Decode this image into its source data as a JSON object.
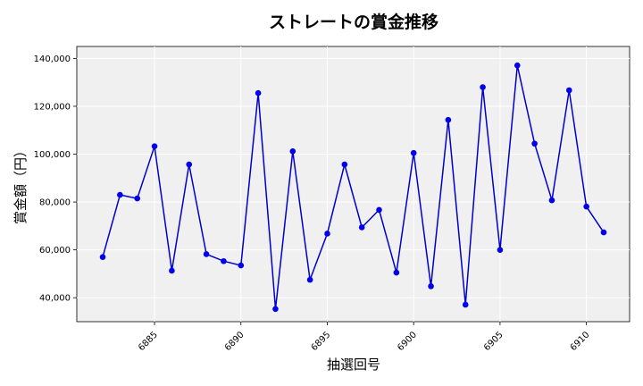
{
  "chart_data": {
    "type": "line",
    "title": "ストレートの賞金推移",
    "xlabel": "抽選回号",
    "ylabel": "賞金額（円）",
    "x": [
      6882,
      6883,
      6884,
      6885,
      6886,
      6887,
      6888,
      6889,
      6890,
      6891,
      6892,
      6893,
      6894,
      6895,
      6896,
      6897,
      6898,
      6899,
      6900,
      6901,
      6902,
      6903,
      6904,
      6905,
      6906,
      6907,
      6908,
      6909,
      6910,
      6911
    ],
    "series": [
      {
        "values": [
          57000,
          83000,
          81500,
          103300,
          51300,
          95700,
          58200,
          55300,
          53500,
          125500,
          35300,
          101200,
          47500,
          66800,
          95700,
          69400,
          76700,
          50500,
          100500,
          44800,
          114300,
          37100,
          128000,
          60000,
          137100,
          104400,
          80700,
          126700,
          78100,
          67300
        ]
      }
    ],
    "xlim": [
      6880.5,
      6912.5
    ],
    "ylim": [
      30000,
      145000
    ],
    "xticks": [
      "6885",
      "6890",
      "6895",
      "6900",
      "6905",
      "6910"
    ],
    "yticks": [
      "40,000",
      "60,000",
      "80,000",
      "100,000",
      "120,000",
      "140,000"
    ],
    "grid": true,
    "colors": {
      "line": "#0000cc",
      "marker": "#0000ee",
      "plot_bg": "#f0f0f0",
      "grid": "#ffffff"
    }
  }
}
